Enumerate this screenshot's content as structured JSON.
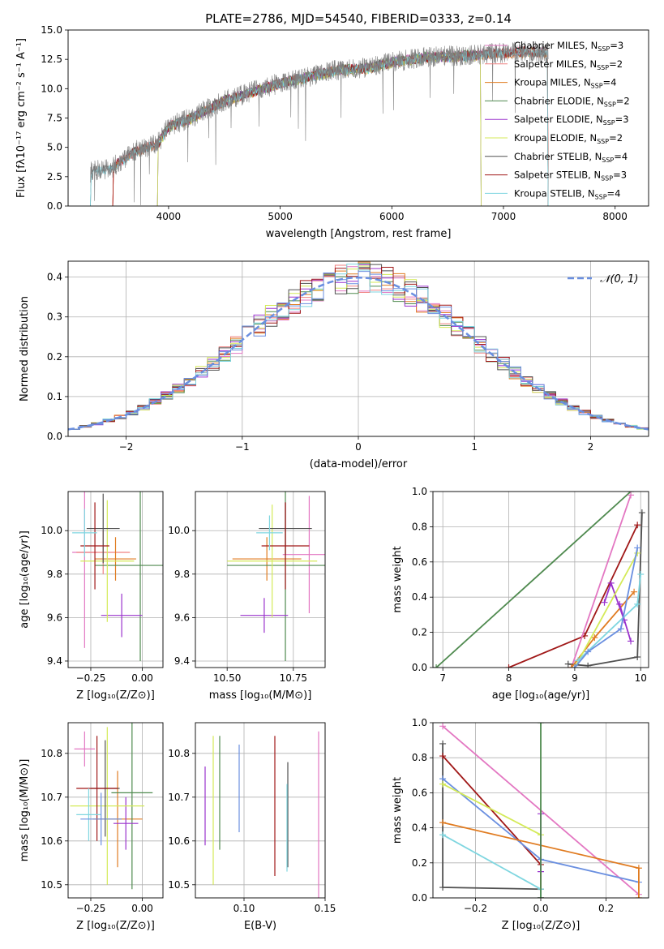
{
  "figure_title": "PLATE=2786, MJD=54540, FIBERID=0333, z=0.14",
  "colors": {
    "Chabrier MILES": "#e377c2",
    "Salpeter MILES": "#f08080",
    "Kroupa MILES": "#e07b20",
    "Chabrier ELODIE": "#4f8a4f",
    "Salpeter ELODIE": "#9a32cd",
    "Kroupa ELODIE": "#d4ea58",
    "Chabrier STELIB": "#505050",
    "Salpeter STELIB": "#a01818",
    "Kroupa STELIB": "#7fd6e0",
    "data": "#808080",
    "alt_blue": "#6a8fe0",
    "normal": "#6a8fe0"
  },
  "chart_data": [
    {
      "id": "spectrum",
      "type": "line",
      "xlabel": "wavelength [Angstrom, rest frame]",
      "ylabel": "Flux [fλ10⁻¹⁷ erg cm⁻² s⁻¹ A⁻¹]",
      "xlim": [
        3100,
        8300
      ],
      "ylim": [
        0,
        15
      ],
      "xticks": [
        "4000",
        "5000",
        "6000",
        "7000",
        "8000"
      ],
      "yticks": [
        "0.0",
        "2.5",
        "5.0",
        "7.5",
        "10.0",
        "12.5",
        "15.0"
      ],
      "legend": [
        "Chabrier MILES, N_SSP=3",
        "Salpeter MILES, N_SSP=2",
        "Kroupa MILES, N_SSP=4",
        "Chabrier ELODIE, N_SSP=2",
        "Salpeter ELODIE, N_SSP=3",
        "Kroupa ELODIE, N_SSP=2",
        "Chabrier STELIB, N_SSP=4",
        "Salpeter STELIB, N_SSP=3",
        "Kroupa STELIB, N_SSP=4"
      ],
      "continuum": {
        "x": [
          3300,
          3500,
          3700,
          3900,
          4000,
          4200,
          4500,
          4800,
          5000,
          5200,
          5500,
          5800,
          6000,
          6300,
          6600,
          6900,
          7200,
          7400
        ],
        "y": [
          2.9,
          3.3,
          4.7,
          5.3,
          6.8,
          7.5,
          9.0,
          9.9,
          10.5,
          10.9,
          11.6,
          11.8,
          12.3,
          12.7,
          12.8,
          13.0,
          13.2,
          13.1
        ]
      },
      "model_ranges": [
        [
          3500,
          7400
        ],
        [
          3500,
          7400
        ],
        [
          3500,
          7400
        ],
        [
          3900,
          6800
        ],
        [
          3900,
          6800
        ],
        [
          3900,
          6800
        ],
        [
          3300,
          7400
        ],
        [
          3500,
          7400
        ],
        [
          3300,
          7400
        ]
      ]
    },
    {
      "id": "residuals",
      "type": "histogram",
      "xlabel": "(data-model)/error",
      "ylabel": "Normed distribution",
      "xlim": [
        -2.5,
        2.5
      ],
      "ylim": [
        0,
        0.44
      ],
      "xticks": [
        "−2",
        "−1",
        "0",
        "1",
        "2"
      ],
      "yticks": [
        "0.0",
        "0.1",
        "0.2",
        "0.3",
        "0.4"
      ],
      "legend": "𝒩(0, 1)",
      "bin_width": 0.1
    },
    {
      "id": "age-vs-z",
      "type": "errorbar",
      "xlabel": "Z [log₁₀(Z/Z⊙)]",
      "ylabel": "age  [log₁₀(age/yr)]",
      "xlim": [
        -0.36,
        0.1
      ],
      "ylim": [
        9.37,
        10.18
      ],
      "xticks": [
        "−0.25",
        "0.00"
      ],
      "xtick_values": [
        -0.25,
        0.0
      ],
      "yticks": [
        "9.4",
        "9.6",
        "9.8",
        "10.0"
      ],
      "ytick_values": [
        9.4,
        9.6,
        9.8,
        10.0
      ],
      "points": [
        {
          "series": "Chabrier MILES",
          "x": -0.28,
          "y": 9.9,
          "xerr": 0.06,
          "yerr": 0.44
        },
        {
          "series": "Salpeter MILES",
          "x": -0.19,
          "y": 9.9,
          "xerr": 0.13,
          "yerr": 0.1
        },
        {
          "series": "Kroupa MILES",
          "x": -0.13,
          "y": 9.87,
          "xerr": 0.1,
          "yerr": 0.1
        },
        {
          "series": "Chabrier ELODIE",
          "x": -0.01,
          "y": 9.84,
          "xerr": 0.22,
          "yerr": 0.44
        },
        {
          "series": "Salpeter ELODIE",
          "x": -0.1,
          "y": 9.61,
          "xerr": 0.1,
          "yerr": 0.1
        },
        {
          "series": "Kroupa ELODIE",
          "x": -0.17,
          "y": 9.86,
          "xerr": 0.13,
          "yerr": 0.28
        },
        {
          "series": "Chabrier STELIB",
          "x": -0.19,
          "y": 10.01,
          "xerr": 0.08,
          "yerr": 0.16
        },
        {
          "series": "Salpeter STELIB",
          "x": -0.23,
          "y": 9.93,
          "xerr": 0.07,
          "yerr": 0.2
        },
        {
          "series": "Kroupa STELIB",
          "x": -0.28,
          "y": 9.99,
          "xerr": 0.06,
          "yerr": 0.11
        }
      ]
    },
    {
      "id": "age-vs-mass",
      "type": "errorbar",
      "xlabel": "mass [log₁₀(M/M⊙)]",
      "ylabel": "",
      "xlim": [
        10.38,
        10.87
      ],
      "ylim": [
        9.37,
        10.18
      ],
      "xticks": [
        "10.50",
        "10.75"
      ],
      "xtick_values": [
        10.5,
        10.75
      ],
      "yticks": [
        "9.4",
        "9.6",
        "9.8",
        "10.0"
      ],
      "ytick_values": [
        9.4,
        9.6,
        9.8,
        10.0
      ],
      "points": [
        {
          "series": "Chabrier MILES",
          "x": 10.81,
          "y": 9.89,
          "xerr": 0.1,
          "yerr": 0.27
        },
        {
          "series": "Kroupa MILES",
          "x": 10.65,
          "y": 9.87,
          "xerr": 0.13,
          "yerr": 0.1
        },
        {
          "series": "Chabrier ELODIE",
          "x": 10.72,
          "y": 9.84,
          "xerr": 0.22,
          "yerr": 0.44
        },
        {
          "series": "Salpeter ELODIE",
          "x": 10.64,
          "y": 9.61,
          "xerr": 0.09,
          "yerr": 0.08
        },
        {
          "series": "Kroupa ELODIE",
          "x": 10.67,
          "y": 9.86,
          "xerr": 0.17,
          "yerr": 0.26
        },
        {
          "series": "Chabrier STELIB",
          "x": 10.72,
          "y": 10.01,
          "xerr": 0.1,
          "yerr": 0.12
        },
        {
          "series": "Salpeter STELIB",
          "x": 10.72,
          "y": 9.93,
          "xerr": 0.09,
          "yerr": 0.2
        },
        {
          "series": "Kroupa STELIB",
          "x": 10.66,
          "y": 9.99,
          "xerr": 0.05,
          "yerr": 0.08
        }
      ]
    },
    {
      "id": "mass-weight-vs-age",
      "type": "line",
      "xlabel": "age  [log₁₀(age/yr)]",
      "ylabel": "mass weight",
      "xlim": [
        6.85,
        10.12
      ],
      "ylim": [
        0,
        1
      ],
      "xticks": [
        "7",
        "8",
        "9",
        "10"
      ],
      "xtick_values": [
        7,
        8,
        9,
        10
      ],
      "yticks": [
        "0.0",
        "0.2",
        "0.4",
        "0.6",
        "0.8",
        "1.0"
      ],
      "ytick_values": [
        0,
        0.2,
        0.4,
        0.6,
        0.8,
        1.0
      ],
      "series": [
        {
          "series": "Chabrier ELODIE",
          "x": [
            6.9,
            9.85
          ],
          "y": [
            0.0,
            1.0
          ]
        },
        {
          "series": "Salpeter STELIB",
          "x": [
            8.0,
            9.15,
            9.95
          ],
          "y": [
            0.0,
            0.18,
            0.81
          ]
        },
        {
          "series": "Chabrier MILES",
          "x": [
            8.95,
            9.85
          ],
          "y": [
            0.0,
            0.98
          ]
        },
        {
          "series": "Chabrier STELIB",
          "x": [
            8.9,
            9.2,
            9.95,
            10.02
          ],
          "y": [
            0.02,
            0.01,
            0.06,
            0.88
          ]
        },
        {
          "series": "Kroupa MILES",
          "x": [
            8.95,
            9.3,
            9.9
          ],
          "y": [
            0.0,
            0.17,
            0.43
          ]
        },
        {
          "series": "Salpeter ELODIE",
          "x": [
            9.45,
            9.55,
            9.75,
            9.68,
            9.85
          ],
          "y": [
            0.37,
            0.48,
            0.27,
            0.36,
            0.15
          ]
        },
        {
          "series": "Kroupa ELODIE",
          "x": [
            9.0,
            9.95
          ],
          "y": [
            0.0,
            0.65
          ]
        },
        {
          "series": "Kroupa STELIB",
          "x": [
            9.05,
            9.95,
            10.0
          ],
          "y": [
            0.04,
            0.36,
            0.53
          ]
        },
        {
          "series": "alt_blue",
          "x": [
            9.0,
            9.2,
            9.7,
            9.95
          ],
          "y": [
            0.0,
            0.09,
            0.22,
            0.68
          ]
        }
      ]
    },
    {
      "id": "mass-vs-z",
      "type": "errorbar",
      "xlabel": "Z [log₁₀(Z/Z⊙)]",
      "ylabel": "mass [log₁₀(M/M⊙)]",
      "xlim": [
        -0.36,
        0.1
      ],
      "ylim": [
        10.47,
        10.87
      ],
      "xticks": [
        "−0.25",
        "0.00"
      ],
      "xtick_values": [
        -0.25,
        0.0
      ],
      "yticks": [
        "10.5",
        "10.6",
        "10.7",
        "10.8"
      ],
      "ytick_values": [
        10.5,
        10.6,
        10.7,
        10.8
      ],
      "points": [
        {
          "series": "Chabrier MILES",
          "x": -0.28,
          "y": 10.81,
          "xerr": 0.05,
          "yerr": 0.04
        },
        {
          "series": "Kroupa MILES",
          "x": -0.12,
          "y": 10.65,
          "xerr": 0.12,
          "yerr": 0.11
        },
        {
          "series": "Chabrier ELODIE",
          "x": -0.05,
          "y": 10.71,
          "xerr": 0.1,
          "yerr": 0.22
        },
        {
          "series": "Salpeter ELODIE",
          "x": -0.08,
          "y": 10.64,
          "xerr": 0.06,
          "yerr": 0.06
        },
        {
          "series": "Kroupa ELODIE",
          "x": -0.17,
          "y": 10.68,
          "xerr": 0.18,
          "yerr": 0.18
        },
        {
          "series": "Chabrier STELIB",
          "x": -0.18,
          "y": 10.72,
          "xerr": 0.07,
          "yerr": 0.11
        },
        {
          "series": "Salpeter STELIB",
          "x": -0.22,
          "y": 10.72,
          "xerr": 0.1,
          "yerr": 0.12
        },
        {
          "series": "Kroupa STELIB",
          "x": -0.26,
          "y": 10.66,
          "xerr": 0.06,
          "yerr": 0.06
        },
        {
          "series": "alt_blue",
          "x": -0.2,
          "y": 10.65,
          "xerr": 0.1,
          "yerr": 0.06
        }
      ]
    },
    {
      "id": "mass-vs-ebv",
      "type": "errorbar",
      "xlabel": "E(B-V)",
      "ylabel": "",
      "xlim": [
        0.07,
        0.15
      ],
      "ylim": [
        10.47,
        10.87
      ],
      "xticks": [
        "0.10",
        "0.15"
      ],
      "xtick_values": [
        0.1,
        0.15
      ],
      "yticks": [
        "10.5",
        "10.6",
        "10.7",
        "10.8"
      ],
      "ytick_values": [
        10.5,
        10.6,
        10.7,
        10.8
      ],
      "points": [
        {
          "series": "Salpeter ELODIE",
          "x": 0.076,
          "y": 10.68,
          "xerr": 0,
          "yerr": 0.09
        },
        {
          "series": "Kroupa ELODIE",
          "x": 0.081,
          "y": 10.67,
          "xerr": 0,
          "yerr": 0.17
        },
        {
          "series": "Chabrier ELODIE",
          "x": 0.085,
          "y": 10.71,
          "xerr": 0,
          "yerr": 0.13
        },
        {
          "series": "alt_blue",
          "x": 0.097,
          "y": 10.72,
          "xerr": 0,
          "yerr": 0.1
        },
        {
          "series": "Salpeter STELIB",
          "x": 0.119,
          "y": 10.68,
          "xerr": 0,
          "yerr": 0.16
        },
        {
          "series": "Chabrier STELIB",
          "x": 0.127,
          "y": 10.66,
          "xerr": 0,
          "yerr": 0.12
        },
        {
          "series": "Kroupa STELIB",
          "x": 0.1265,
          "y": 10.63,
          "xerr": 0,
          "yerr": 0.1
        },
        {
          "series": "Chabrier MILES",
          "x": 0.146,
          "y": 10.65,
          "xerr": 0,
          "yerr": 0.2
        }
      ]
    },
    {
      "id": "mass-weight-vs-z",
      "type": "line",
      "xlabel": "Z [log₁₀(Z/Z⊙)]",
      "ylabel": "mass weight",
      "xlim": [
        -0.33,
        0.33
      ],
      "ylim": [
        0,
        1
      ],
      "xticks": [
        "−0.2",
        "0.0",
        "0.2"
      ],
      "xtick_values": [
        -0.2,
        0.0,
        0.2
      ],
      "yticks": [
        "0.0",
        "0.2",
        "0.4",
        "0.6",
        "0.8",
        "1.0"
      ],
      "ytick_values": [
        0,
        0.2,
        0.4,
        0.6,
        0.8,
        1.0
      ],
      "series": [
        {
          "series": "Chabrier MILES",
          "x": [
            -0.3,
            0.3
          ],
          "y": [
            0.98,
            0.02
          ]
        },
        {
          "series": "Chabrier STELIB",
          "x": [
            -0.3,
            -0.3,
            0.0,
            0.0
          ],
          "y": [
            0.88,
            0.06,
            0.05,
            0.0
          ]
        },
        {
          "series": "Salpeter STELIB",
          "x": [
            -0.3,
            0.0,
            0.0
          ],
          "y": [
            0.81,
            0.19,
            0.0
          ]
        },
        {
          "series": "alt_blue",
          "x": [
            -0.3,
            0.0,
            0.3
          ],
          "y": [
            0.68,
            0.22,
            0.09
          ]
        },
        {
          "series": "Kroupa ELODIE",
          "x": [
            -0.3,
            0.0
          ],
          "y": [
            0.65,
            0.36
          ]
        },
        {
          "series": "Kroupa STELIB",
          "x": [
            -0.3,
            0.0,
            0.0
          ],
          "y": [
            0.36,
            0.05,
            0.0
          ]
        },
        {
          "series": "Kroupa MILES",
          "x": [
            -0.3,
            0.3,
            0.3
          ],
          "y": [
            0.43,
            0.17,
            0.0
          ]
        },
        {
          "series": "Salpeter ELODIE",
          "x": [
            0.0,
            0.0
          ],
          "y": [
            0.48,
            0.15
          ]
        },
        {
          "series": "Chabrier ELODIE",
          "x": [
            0.0,
            0.0
          ],
          "y": [
            1.0,
            0.0
          ]
        }
      ]
    }
  ]
}
